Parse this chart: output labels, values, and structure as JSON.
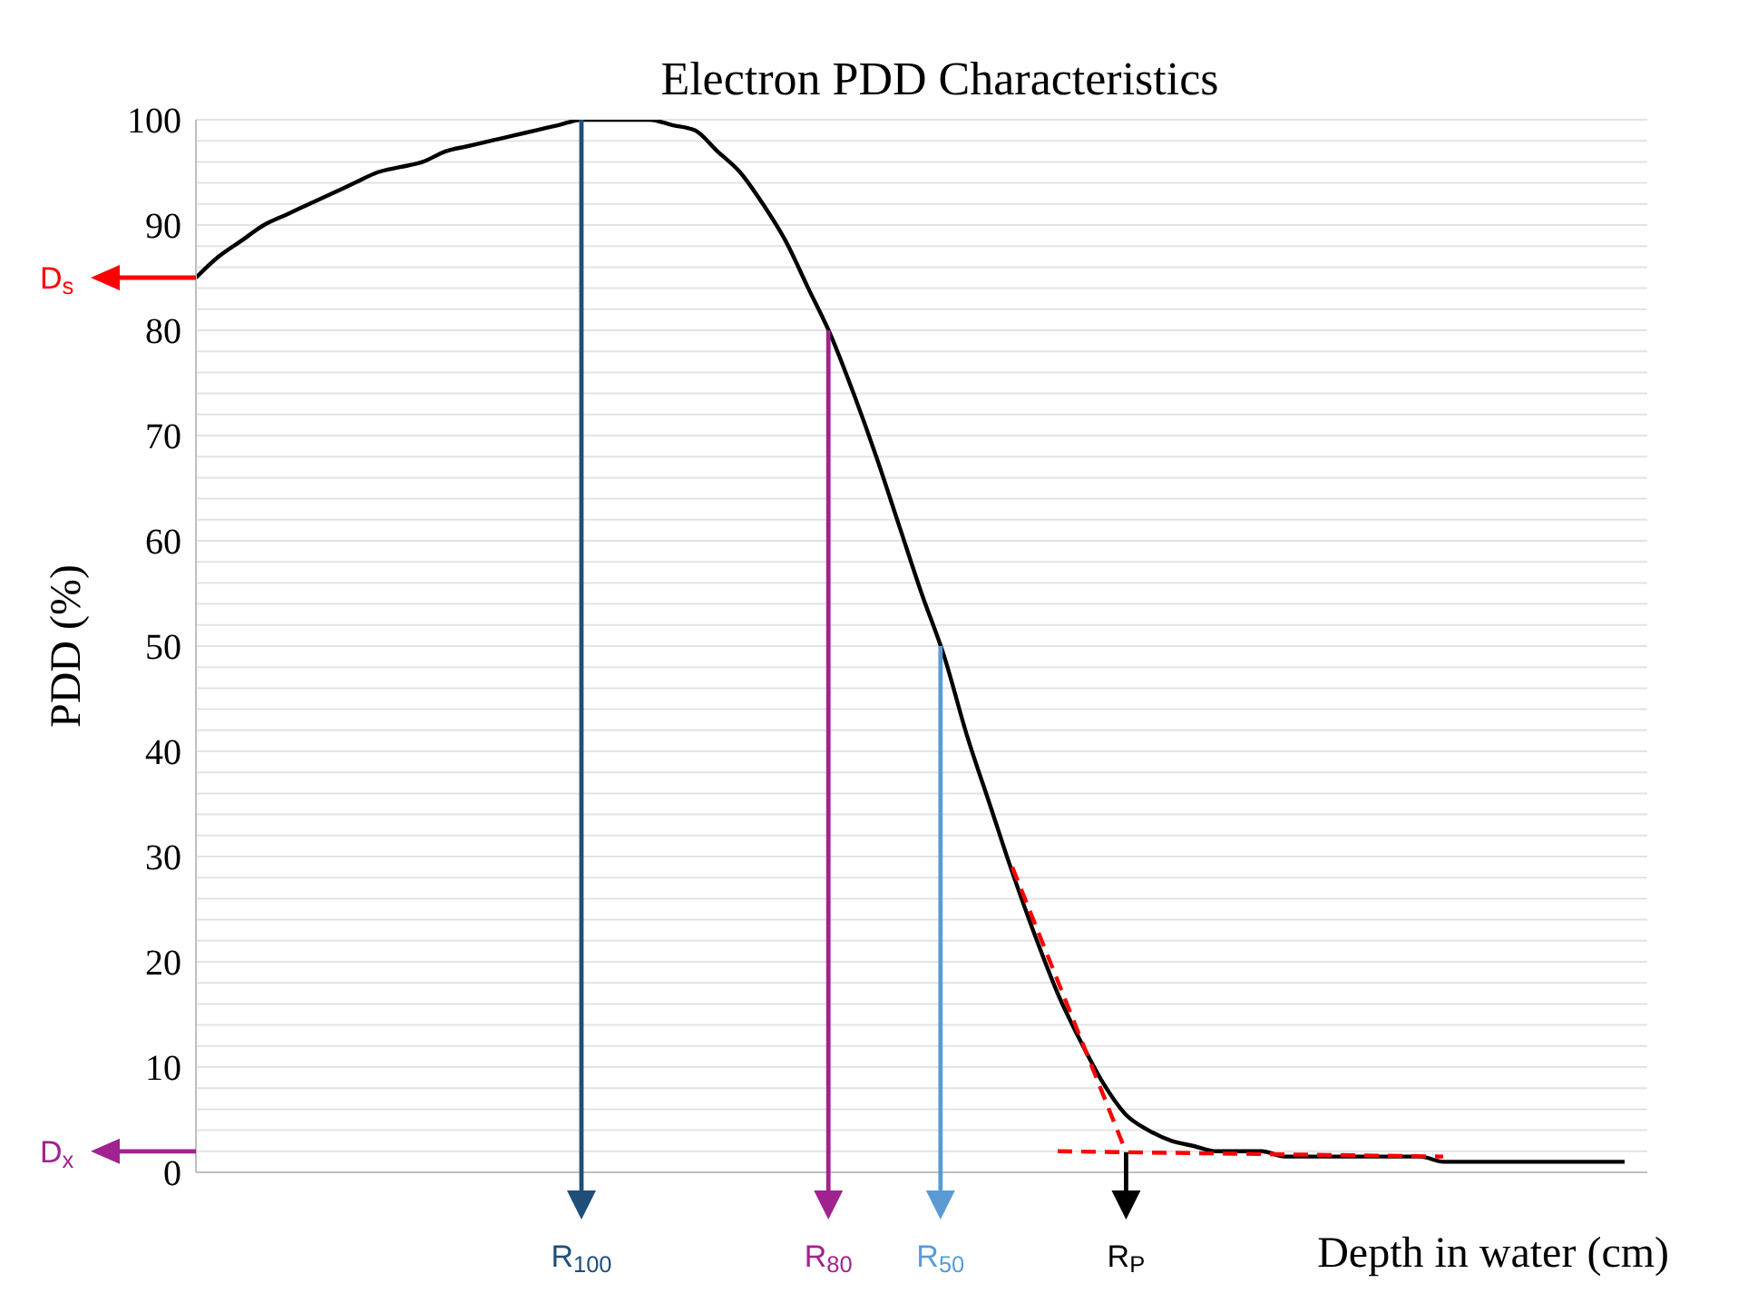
{
  "chart_data": {
    "type": "line",
    "title": "Electron PDD Characteristics",
    "ylabel": "PDD  (%)",
    "xlabel": "Depth in water (cm)",
    "categories": [
      null,
      null,
      null,
      null,
      null,
      null,
      null,
      null,
      null,
      null,
      null,
      null,
      null,
      null,
      null,
      null,
      null,
      null,
      null,
      null,
      null,
      null,
      null,
      null,
      null,
      null,
      null,
      null,
      null,
      null,
      null,
      null,
      null,
      null,
      null,
      null,
      null,
      null,
      null,
      null,
      null,
      null,
      null,
      null,
      null,
      null,
      null,
      null,
      null,
      null,
      null,
      null,
      null,
      null,
      null,
      null,
      null,
      null,
      null,
      null,
      null,
      null,
      null,
      null,
      null
    ],
    "series": [
      {
        "color": "#000000",
        "line_style": "solid",
        "values": [
          85,
          87,
          88.5,
          90,
          91,
          92,
          93,
          94,
          95,
          95.5,
          96,
          97,
          97.5,
          98,
          98.5,
          99,
          99.5,
          100,
          100,
          100,
          100,
          99.5,
          99,
          97,
          95,
          92,
          88.5,
          84,
          79.5,
          74,
          68,
          61.5,
          55,
          49,
          41.5,
          35,
          28.5,
          22.5,
          17,
          12.5,
          8.5,
          5.5,
          4,
          3,
          2.5,
          2,
          2,
          2,
          1.5,
          1.5,
          1.5,
          1.5,
          1.5,
          1.5,
          1.5,
          1,
          1,
          1,
          1,
          1,
          1,
          1,
          1,
          1,
          null
        ]
      },
      {
        "color": "#ff0000",
        "line_style": "dashed",
        "values": [
          null,
          null,
          null,
          null,
          null,
          null,
          null,
          null,
          null,
          null,
          null,
          null,
          null,
          null,
          null,
          null,
          null,
          null,
          null,
          null,
          null,
          null,
          null,
          null,
          null,
          null,
          null,
          null,
          null,
          null,
          null,
          null,
          null,
          null,
          null,
          null,
          29,
          null,
          null,
          null,
          null,
          2,
          null,
          null,
          null,
          null,
          null,
          null,
          null,
          null,
          null,
          null,
          null,
          null,
          null,
          null,
          null,
          null,
          null,
          null,
          null,
          null,
          null,
          null,
          null
        ]
      },
      {
        "color": "#ff0000",
        "line_style": "dashed",
        "values": [
          null,
          null,
          null,
          null,
          null,
          null,
          null,
          null,
          null,
          null,
          null,
          null,
          null,
          null,
          null,
          null,
          null,
          null,
          null,
          null,
          null,
          null,
          null,
          null,
          null,
          null,
          null,
          null,
          null,
          null,
          null,
          null,
          null,
          null,
          null,
          null,
          null,
          null,
          2,
          null,
          null,
          null,
          null,
          null,
          null,
          null,
          null,
          null,
          null,
          null,
          null,
          null,
          null,
          null,
          null,
          1.5,
          null,
          null,
          null,
          null,
          null,
          null,
          null,
          null,
          null
        ]
      }
    ],
    "ylim": [
      0,
      100
    ],
    "yticks": [
      0,
      {
        "value": 2,
        "label": null
      },
      {
        "value": 4,
        "label": null
      },
      {
        "value": 6,
        "label": null
      },
      {
        "value": 8,
        "label": null
      },
      10,
      {
        "value": 12,
        "label": null
      },
      {
        "value": 14,
        "label": null
      },
      {
        "value": 16,
        "label": null
      },
      {
        "value": 18,
        "label": null
      },
      20,
      {
        "value": 22,
        "label": null
      },
      {
        "value": 24,
        "label": null
      },
      {
        "value": 26,
        "label": null
      },
      {
        "value": 28,
        "label": null
      },
      30,
      {
        "value": 32,
        "label": null
      },
      {
        "value": 34,
        "label": null
      },
      {
        "value": 36,
        "label": null
      },
      {
        "value": 38,
        "label": null
      },
      40,
      {
        "value": 42,
        "label": null
      },
      {
        "value": 44,
        "label": null
      },
      {
        "value": 46,
        "label": null
      },
      {
        "value": 48,
        "label": null
      },
      50,
      {
        "value": 52,
        "label": null
      },
      {
        "value": 54,
        "label": null
      },
      {
        "value": 56,
        "label": null
      },
      {
        "value": 58,
        "label": null
      },
      60,
      {
        "value": 62,
        "label": null
      },
      {
        "value": 64,
        "label": null
      },
      {
        "value": 66,
        "label": null
      },
      {
        "value": 68,
        "label": null
      },
      70,
      {
        "value": 72,
        "label": null
      },
      {
        "value": 74,
        "label": null
      },
      {
        "value": 76,
        "label": null
      },
      {
        "value": 78,
        "label": null
      },
      80,
      {
        "value": 82,
        "label": null
      },
      {
        "value": 84,
        "label": null
      },
      {
        "value": 86,
        "label": null
      },
      {
        "value": 88,
        "label": null
      },
      90,
      {
        "value": 92,
        "label": null
      },
      {
        "value": 94,
        "label": null
      },
      {
        "value": 96,
        "label": null
      },
      {
        "value": 98,
        "label": null
      },
      100
    ],
    "grid": "y",
    "marker": "none",
    "tick_labels": "y",
    "annotations": [
      "R$_{100}$",
      "R$_{80}$",
      "R$_{50}$",
      "R$_{P}$",
      "D$_{s}$",
      "D$_{x}$"
    ]
  }
}
